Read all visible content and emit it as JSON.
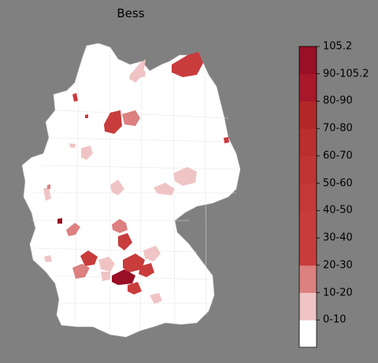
{
  "title": "Bess",
  "colorbar": {
    "tick_labels": [
      "105.2",
      "90-105.2",
      "80-90",
      "70-80",
      "60-70",
      "50-60",
      "40-50",
      "30-40",
      "20-30",
      "10-20",
      "0-10"
    ],
    "bins_bottom_to_top": [
      {
        "label": "0-10",
        "color": "#ffffff"
      },
      {
        "label": "10-20",
        "color": "#f0c4c4"
      },
      {
        "label": "20-30",
        "color": "#dc8080"
      },
      {
        "label": "30-40",
        "color": "#c83c3c"
      },
      {
        "label": "40-50",
        "color": "#c93c3c"
      },
      {
        "label": "50-60",
        "color": "#c43838"
      },
      {
        "label": "60-70",
        "color": "#c03434"
      },
      {
        "label": "70-80",
        "color": "#bb2f2f"
      },
      {
        "label": "80-90",
        "color": "#b22828"
      },
      {
        "label": "90-105.2",
        "color": "#a8182a"
      },
      {
        "label": "105.2",
        "color": "#990f26"
      }
    ]
  },
  "map": {
    "background_fill": "#ffffff",
    "border_color": "#c8c8c8",
    "highlighted_region_colors": [
      "#c83c3c",
      "#dc8080",
      "#f0c4c4",
      "#990f26"
    ]
  }
}
